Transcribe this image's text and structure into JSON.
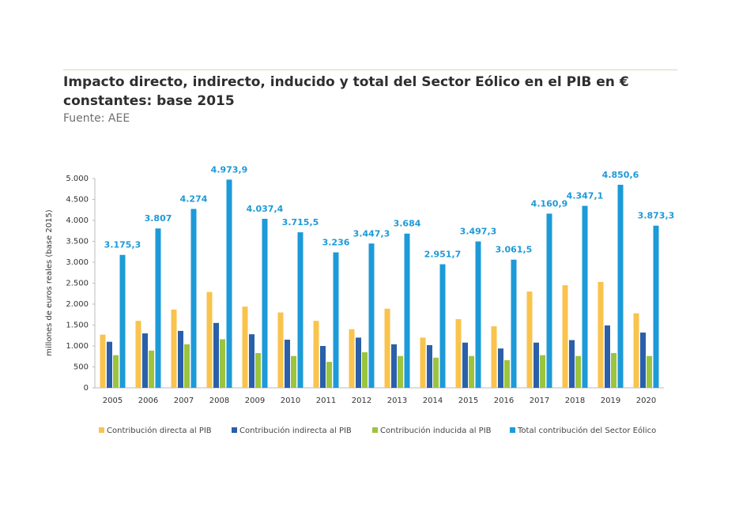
{
  "chart_data": {
    "type": "bar",
    "title": "Impacto directo, indirecto, inducido y total del Sector Eólico en el PIB en € constantes: base 2015",
    "source": "Fuente: AEE",
    "y_label": "millones de euros reales (base 2015)",
    "categories": [
      "2005",
      "2006",
      "2007",
      "2008",
      "2009",
      "2010",
      "2011",
      "2012",
      "2013",
      "2014",
      "2015",
      "2016",
      "2017",
      "2018",
      "2019",
      "2020"
    ],
    "series": [
      {
        "name": "Contribución directa al PIB",
        "color": "#f9c34d",
        "values": [
          1270,
          1600,
          1870,
          2290,
          1940,
          1800,
          1600,
          1400,
          1890,
          1200,
          1640,
          1470,
          2300,
          2450,
          2530,
          1780
        ]
      },
      {
        "name": "Contribución indirecta al PIB",
        "color": "#2a5faa",
        "values": [
          1100,
          1300,
          1360,
          1550,
          1280,
          1150,
          1000,
          1200,
          1040,
          1020,
          1080,
          940,
          1080,
          1140,
          1490,
          1320
        ]
      },
      {
        "name": "Contribución inducida al PIB",
        "color": "#9bc43f",
        "values": [
          780,
          890,
          1040,
          1160,
          830,
          760,
          620,
          850,
          760,
          720,
          760,
          660,
          780,
          760,
          830,
          760
        ]
      },
      {
        "name": "Total contribución del Sector Eólico",
        "color": "#1d9ad8",
        "values": [
          3175.3,
          3807,
          4274,
          4973.9,
          4037.4,
          3715.5,
          3236,
          3447.3,
          3684,
          2951.7,
          3497.3,
          3061.5,
          4160.9,
          4347.1,
          4850.6,
          3873.3
        ],
        "value_labels": [
          "3.175,3",
          "3.807",
          "4.274",
          "4.973,9",
          "4.037,4",
          "3.715,5",
          "3.236",
          "3.447,3",
          "3.684",
          "2.951,7",
          "3.497,3",
          "3.061,5",
          "4.160,9",
          "4.347,1",
          "4.850,6",
          "3.873,3"
        ]
      }
    ],
    "ylim": [
      0,
      5000
    ],
    "yticks": [
      0,
      500,
      {
        "value": 1000,
        "label": "1.000"
      },
      {
        "value": 1500,
        "label": "1.500"
      },
      {
        "value": 2000,
        "label": "2.000"
      },
      {
        "value": 2500,
        "label": "2.500"
      },
      {
        "value": 3000,
        "label": "3.000"
      },
      {
        "value": 3500,
        "label": "3.500"
      },
      {
        "value": 4000,
        "label": "4.000"
      },
      {
        "value": 4500,
        "label": "4.500"
      },
      {
        "value": 5000,
        "label": "5.000"
      }
    ],
    "grid": false,
    "legend": "bottom"
  }
}
